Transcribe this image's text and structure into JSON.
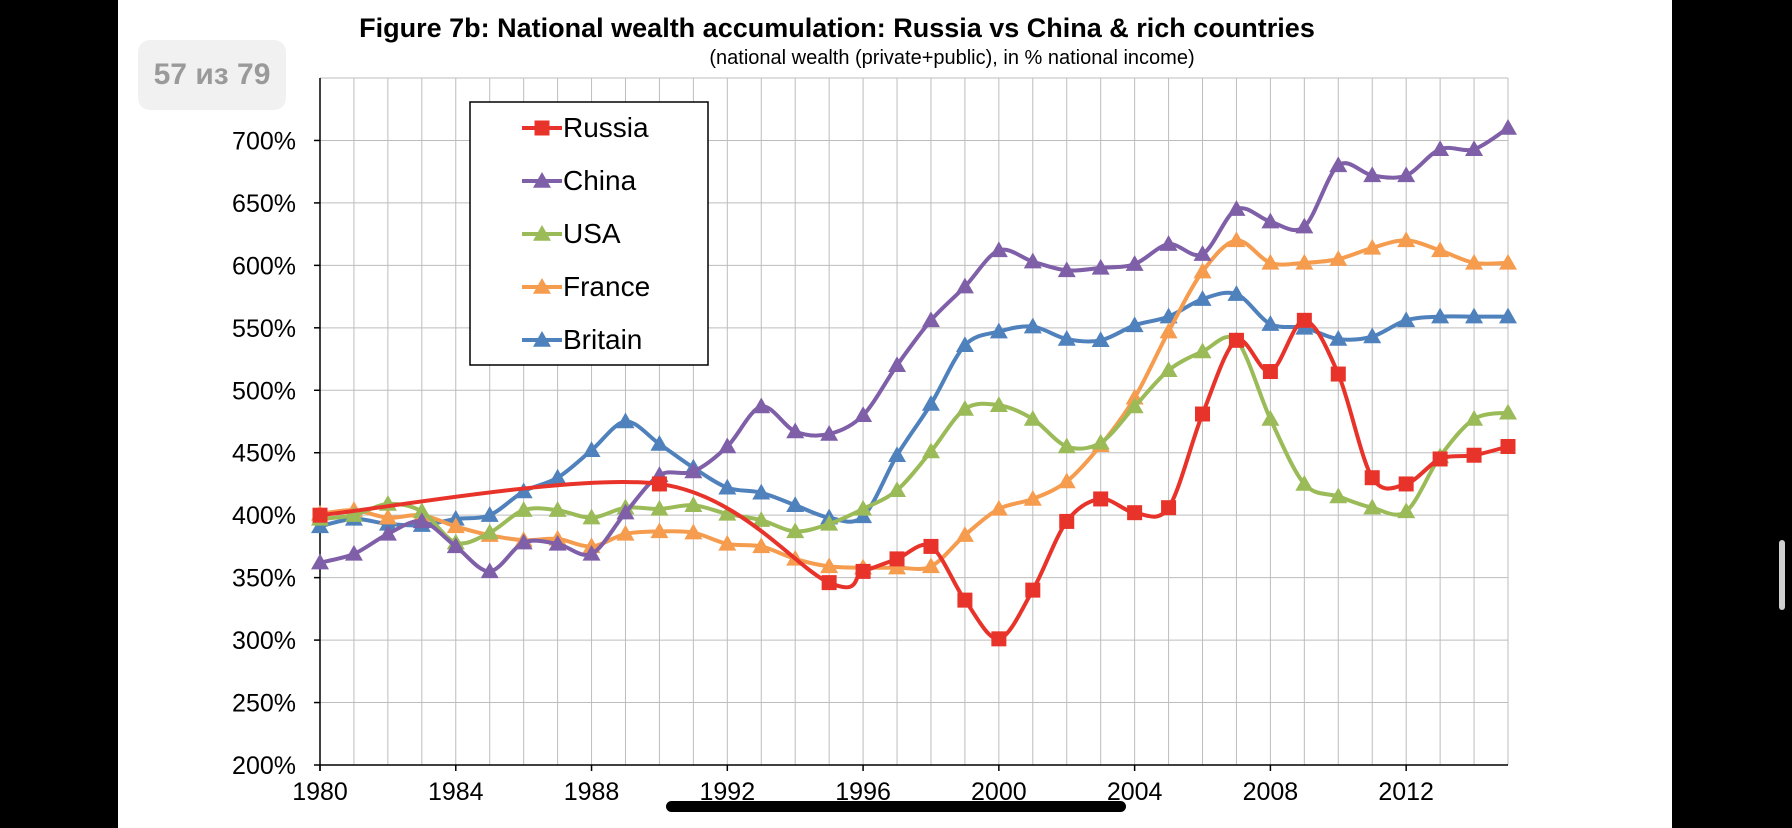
{
  "viewer": {
    "page_counter": "57 из 79"
  },
  "chart_data": {
    "type": "line",
    "title": "Figure 7b: National wealth accumulation: Russia vs China & rich countries",
    "subtitle": "(national wealth (private+public), in % national income)",
    "xlabel": "",
    "ylabel": "",
    "xlim": [
      1980,
      2015
    ],
    "ylim": [
      200,
      750
    ],
    "x_ticks": [
      1980,
      1984,
      1988,
      1992,
      1996,
      2000,
      2004,
      2008,
      2012
    ],
    "y_ticks": [
      200,
      250,
      300,
      350,
      400,
      450,
      500,
      550,
      600,
      650,
      700
    ],
    "y_tick_suffix": "%",
    "grid": true,
    "legend_position": "top-left",
    "series": [
      {
        "name": "Russia",
        "color": "#e8332a",
        "marker": "square",
        "points": [
          [
            1980,
            400
          ],
          [
            1990,
            425
          ],
          [
            1995,
            346
          ],
          [
            1996,
            355
          ],
          [
            1997,
            365
          ],
          [
            1998,
            375
          ],
          [
            1999,
            332
          ],
          [
            2000,
            301
          ],
          [
            2001,
            340
          ],
          [
            2002,
            395
          ],
          [
            2003,
            413
          ],
          [
            2004,
            402
          ],
          [
            2005,
            406
          ],
          [
            2006,
            481
          ],
          [
            2007,
            540
          ],
          [
            2008,
            515
          ],
          [
            2009,
            556
          ],
          [
            2010,
            513
          ],
          [
            2011,
            430
          ],
          [
            2012,
            425
          ],
          [
            2013,
            445
          ],
          [
            2014,
            448
          ],
          [
            2015,
            455
          ]
        ]
      },
      {
        "name": "China",
        "color": "#7f5fa8",
        "marker": "triangle",
        "points": [
          [
            1980,
            362
          ],
          [
            1981,
            369
          ],
          [
            1982,
            385
          ],
          [
            1983,
            395
          ],
          [
            1984,
            375
          ],
          [
            1985,
            355
          ],
          [
            1986,
            378
          ],
          [
            1987,
            377
          ],
          [
            1988,
            369
          ],
          [
            1989,
            402
          ],
          [
            1990,
            432
          ],
          [
            1991,
            435
          ],
          [
            1992,
            455
          ],
          [
            1993,
            487
          ],
          [
            1994,
            467
          ],
          [
            1995,
            465
          ],
          [
            1996,
            480
          ],
          [
            1997,
            520
          ],
          [
            1998,
            556
          ],
          [
            1999,
            583
          ],
          [
            2000,
            612
          ],
          [
            2001,
            603
          ],
          [
            2002,
            596
          ],
          [
            2003,
            598
          ],
          [
            2004,
            601
          ],
          [
            2005,
            617
          ],
          [
            2006,
            609
          ],
          [
            2007,
            645
          ],
          [
            2008,
            635
          ],
          [
            2009,
            631
          ],
          [
            2010,
            680
          ],
          [
            2011,
            672
          ],
          [
            2012,
            672
          ],
          [
            2013,
            693
          ],
          [
            2014,
            693
          ],
          [
            2015,
            710
          ]
        ]
      },
      {
        "name": "USA",
        "color": "#9bbb59",
        "marker": "triangle",
        "points": [
          [
            1980,
            397
          ],
          [
            1981,
            400
          ],
          [
            1982,
            409
          ],
          [
            1983,
            403
          ],
          [
            1984,
            378
          ],
          [
            1985,
            386
          ],
          [
            1986,
            404
          ],
          [
            1987,
            404
          ],
          [
            1988,
            398
          ],
          [
            1989,
            406
          ],
          [
            1990,
            405
          ],
          [
            1991,
            408
          ],
          [
            1992,
            401
          ],
          [
            1993,
            396
          ],
          [
            1994,
            387
          ],
          [
            1995,
            393
          ],
          [
            1996,
            405
          ],
          [
            1997,
            420
          ],
          [
            1998,
            451
          ],
          [
            1999,
            485
          ],
          [
            2000,
            488
          ],
          [
            2001,
            477
          ],
          [
            2002,
            455
          ],
          [
            2003,
            458
          ],
          [
            2004,
            487
          ],
          [
            2005,
            516
          ],
          [
            2006,
            531
          ],
          [
            2007,
            540
          ],
          [
            2008,
            477
          ],
          [
            2009,
            425
          ],
          [
            2010,
            415
          ],
          [
            2011,
            406
          ],
          [
            2012,
            403
          ],
          [
            2013,
            447
          ],
          [
            2014,
            477
          ],
          [
            2015,
            482
          ]
        ]
      },
      {
        "name": "France",
        "color": "#f59c4f",
        "marker": "triangle",
        "points": [
          [
            1980,
            401
          ],
          [
            1981,
            404
          ],
          [
            1982,
            398
          ],
          [
            1983,
            400
          ],
          [
            1984,
            391
          ],
          [
            1985,
            384
          ],
          [
            1986,
            380
          ],
          [
            1987,
            381
          ],
          [
            1988,
            375
          ],
          [
            1989,
            385
          ],
          [
            1990,
            387
          ],
          [
            1991,
            386
          ],
          [
            1992,
            377
          ],
          [
            1993,
            375
          ],
          [
            1994,
            365
          ],
          [
            1995,
            359
          ],
          [
            1996,
            358
          ],
          [
            1997,
            358
          ],
          [
            1998,
            359
          ],
          [
            1999,
            384
          ],
          [
            2000,
            405
          ],
          [
            2001,
            413
          ],
          [
            2002,
            427
          ],
          [
            2003,
            456
          ],
          [
            2004,
            494
          ],
          [
            2005,
            547
          ],
          [
            2006,
            595
          ],
          [
            2007,
            620
          ],
          [
            2008,
            602
          ],
          [
            2009,
            602
          ],
          [
            2010,
            605
          ],
          [
            2011,
            614
          ],
          [
            2012,
            620
          ],
          [
            2013,
            612
          ],
          [
            2014,
            602
          ],
          [
            2015,
            602
          ]
        ]
      },
      {
        "name": "Britain",
        "color": "#4f81bd",
        "marker": "triangle",
        "points": [
          [
            1980,
            391
          ],
          [
            1981,
            397
          ],
          [
            1982,
            393
          ],
          [
            1983,
            392
          ],
          [
            1984,
            397
          ],
          [
            1985,
            400
          ],
          [
            1986,
            419
          ],
          [
            1987,
            430
          ],
          [
            1988,
            452
          ],
          [
            1989,
            475
          ],
          [
            1990,
            457
          ],
          [
            1991,
            438
          ],
          [
            1992,
            422
          ],
          [
            1993,
            418
          ],
          [
            1994,
            408
          ],
          [
            1995,
            398
          ],
          [
            1996,
            399
          ],
          [
            1997,
            448
          ],
          [
            1998,
            489
          ],
          [
            1999,
            536
          ],
          [
            2000,
            547
          ],
          [
            2001,
            551
          ],
          [
            2002,
            541
          ],
          [
            2003,
            540
          ],
          [
            2004,
            552
          ],
          [
            2005,
            559
          ],
          [
            2006,
            573
          ],
          [
            2007,
            577
          ],
          [
            2008,
            553
          ],
          [
            2009,
            550
          ],
          [
            2010,
            541
          ],
          [
            2011,
            543
          ],
          [
            2012,
            556
          ],
          [
            2013,
            559
          ],
          [
            2014,
            559
          ],
          [
            2015,
            559
          ]
        ]
      }
    ]
  }
}
